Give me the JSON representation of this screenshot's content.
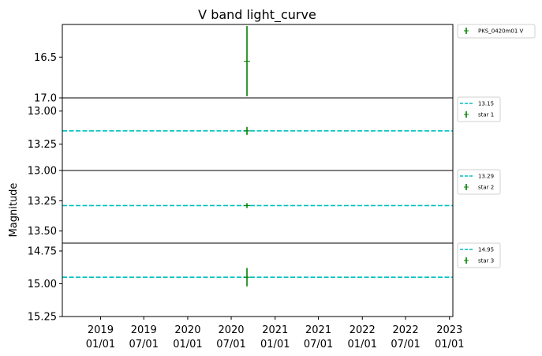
{
  "chart_data": {
    "type": "scatter",
    "title": "V band light_curve",
    "ylabel": "Magnitude",
    "x_tick_labels": [
      [
        "2019",
        "01/01"
      ],
      [
        "2019",
        "07/01"
      ],
      [
        "2020",
        "01/01"
      ],
      [
        "2020",
        "07/01"
      ],
      [
        "2021",
        "01/01"
      ],
      [
        "2021",
        "07/01"
      ],
      [
        "2022",
        "01/01"
      ],
      [
        "2022",
        "07/01"
      ],
      [
        "2023",
        "01/01"
      ]
    ],
    "x_ticks": [
      "2019-01-01",
      "2019-07-01",
      "2020-01-01",
      "2020-07-01",
      "2021-01-01",
      "2021-07-01",
      "2022-01-01",
      "2022-07-01",
      "2023-01-01"
    ],
    "xlim": [
      "2018-07-25",
      "2023-01-15"
    ],
    "panels": [
      {
        "ylim": [
          17.0,
          16.1
        ],
        "yticks": [
          16.5,
          17.0
        ],
        "ytick_labels": [
          "16.5",
          "17.0"
        ],
        "series": [
          {
            "name": "PKS_0420m01 V",
            "color": "#008000",
            "points": [
              {
                "x": "2020-09-05",
                "y": 16.55,
                "yerr": 0.43
              }
            ]
          }
        ],
        "legend": [
          "PKS_0420m01 V"
        ]
      },
      {
        "ylim": [
          13.45,
          12.9
        ],
        "yticks": [
          13.0,
          13.25
        ],
        "ytick_labels": [
          "13.00",
          "13.25"
        ],
        "hline": {
          "y": 13.15,
          "label": "13.15",
          "color": "#00bfbf"
        },
        "series": [
          {
            "name": "star 1",
            "color": "#008000",
            "points": [
              {
                "x": "2020-09-05",
                "y": 13.15,
                "yerr": 0.03
              }
            ]
          }
        ],
        "legend": [
          "13.15",
          "star 1"
        ]
      },
      {
        "ylim": [
          13.6,
          13.0
        ],
        "yticks": [
          13.0,
          13.25,
          13.5
        ],
        "ytick_labels": [
          "13.00",
          "13.25",
          "13.50"
        ],
        "hline": {
          "y": 13.29,
          "label": "13.29",
          "color": "#00bfbf"
        },
        "series": [
          {
            "name": "star 2",
            "color": "#008000",
            "points": [
              {
                "x": "2020-09-05",
                "y": 13.29,
                "yerr": 0.02
              }
            ]
          }
        ],
        "legend": [
          "13.29",
          "star 2"
        ]
      },
      {
        "ylim": [
          15.25,
          14.69
        ],
        "yticks": [
          14.75,
          15.0,
          15.25
        ],
        "ytick_labels": [
          "14.75",
          "15.00",
          "15.25"
        ],
        "hline": {
          "y": 14.95,
          "label": "14.95",
          "color": "#00bfbf"
        },
        "series": [
          {
            "name": "star 3",
            "color": "#008000",
            "points": [
              {
                "x": "2020-09-05",
                "y": 14.95,
                "yerr": 0.07
              }
            ]
          }
        ],
        "legend": [
          "14.95",
          "star 3"
        ]
      }
    ],
    "grid": false
  }
}
